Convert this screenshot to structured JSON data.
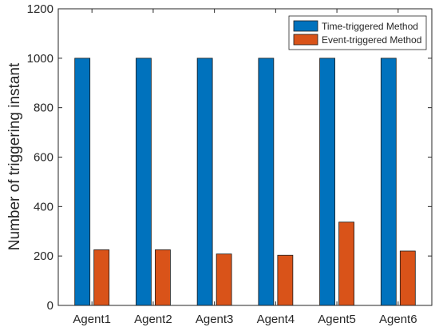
{
  "chart_data": {
    "type": "bar",
    "title": "",
    "xlabel": "",
    "ylabel": "Number of triggering instant",
    "categories": [
      "Agent1",
      "Agent2",
      "Agent3",
      "Agent4",
      "Agent5",
      "Agent6"
    ],
    "series": [
      {
        "name": "Time-triggered Method",
        "values": [
          1000,
          1000,
          1000,
          1000,
          1000,
          1000
        ],
        "color": "#0072BD"
      },
      {
        "name": "Event-triggered Method",
        "values": [
          225,
          225,
          208,
          203,
          337,
          220
        ],
        "color": "#D95319"
      }
    ],
    "ylim": [
      0,
      1200
    ],
    "yticks": [
      0,
      200,
      400,
      600,
      800,
      1000,
      1200
    ],
    "grid": false,
    "legend_position": "top-right"
  }
}
